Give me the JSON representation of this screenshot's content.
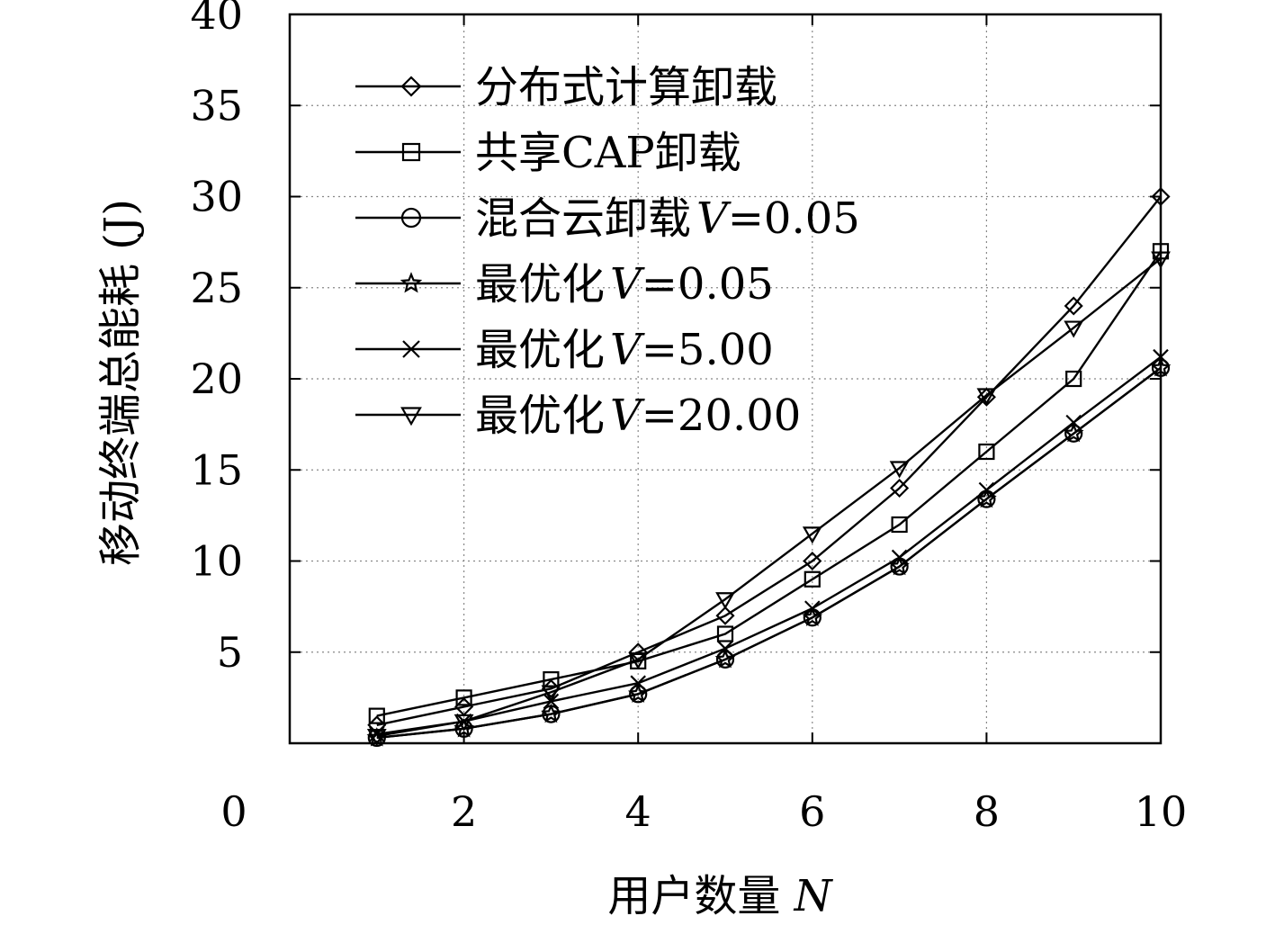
{
  "chart_data": {
    "type": "line",
    "x": [
      1,
      2,
      3,
      4,
      5,
      6,
      7,
      8,
      9,
      10
    ],
    "xlim": [
      0,
      10
    ],
    "ylim": [
      0,
      40
    ],
    "xticks": [
      "0",
      "2",
      "4",
      "6",
      "8",
      "10"
    ],
    "yticks": [
      "5",
      "10",
      "15",
      "20",
      "25",
      "30",
      "35",
      "40"
    ],
    "xlabel": "用户数量",
    "xlabel_var": "N",
    "ylabel": "移动终端总能耗 (J)",
    "grid": true,
    "legend_position": "top-left",
    "series": [
      {
        "name": "分布式计算卸载",
        "marker": "diamond",
        "values": [
          1.0,
          2.0,
          3.0,
          5.0,
          7.0,
          10.0,
          14.0,
          19.0,
          24.0,
          30.0
        ]
      },
      {
        "name": "共享CAP卸载",
        "marker": "square",
        "values": [
          1.5,
          2.5,
          3.5,
          4.5,
          6.0,
          9.0,
          12.0,
          16.0,
          20.0,
          27.0
        ]
      },
      {
        "name": "混合云卸载",
        "name_var": "V=0.05",
        "marker": "circle",
        "values": [
          0.3,
          0.8,
          1.6,
          2.7,
          4.6,
          6.9,
          9.7,
          13.4,
          17.0,
          20.6
        ]
      },
      {
        "name": "最优化",
        "name_var": "V=0.05",
        "marker": "star",
        "values": [
          0.3,
          0.8,
          1.6,
          2.7,
          4.6,
          6.9,
          9.7,
          13.4,
          17.0,
          20.6
        ]
      },
      {
        "name": "最优化",
        "name_var": "V=5.00",
        "marker": "x",
        "values": [
          0.5,
          1.2,
          2.3,
          3.3,
          5.2,
          7.4,
          10.2,
          13.9,
          17.6,
          21.2
        ]
      },
      {
        "name": "最优化",
        "name_var": "V=20.00",
        "marker": "triangle-down",
        "values": [
          0.4,
          1.2,
          2.8,
          4.6,
          7.9,
          11.5,
          15.1,
          19.1,
          22.8,
          26.6
        ]
      }
    ]
  }
}
